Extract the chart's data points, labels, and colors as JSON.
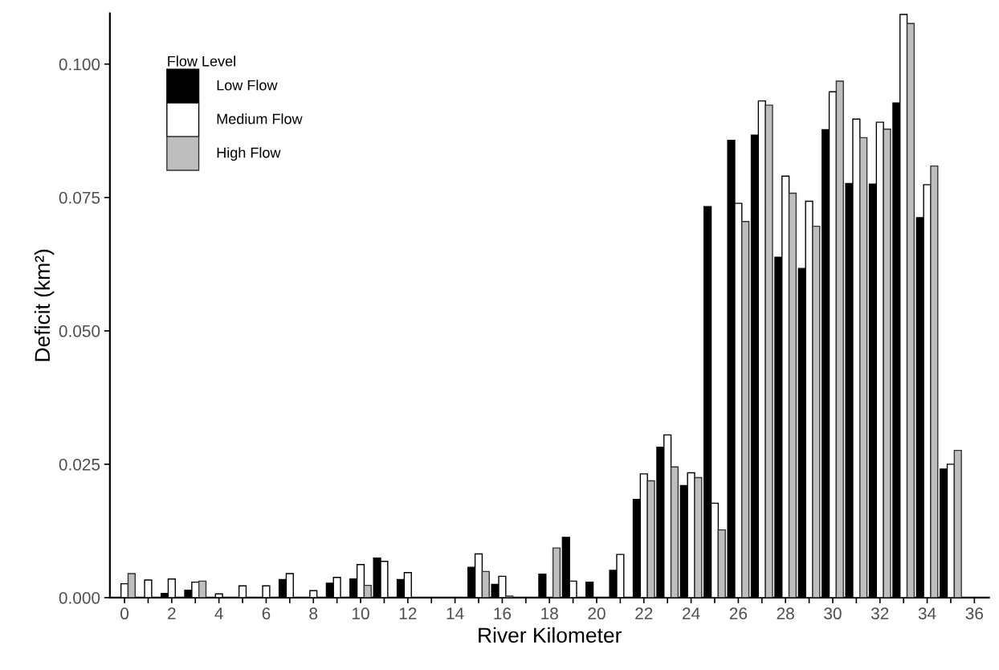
{
  "chart_data": {
    "type": "bar",
    "xlabel": "River Kilometer",
    "ylabel": "Deficit (km²)",
    "legend_title": "Flow Level",
    "legend": "top left",
    "grid": false,
    "x": [
      0,
      1,
      2,
      3,
      4,
      5,
      6,
      7,
      8,
      9,
      10,
      11,
      12,
      13,
      14,
      15,
      16,
      17,
      18,
      19,
      20,
      21,
      22,
      23,
      24,
      25,
      26,
      27,
      28,
      29,
      30,
      31,
      32,
      33,
      34,
      35
    ],
    "xlim": [
      -0.62,
      36.62
    ],
    "xticks": [
      0,
      {
        "value": 1,
        "label": null
      },
      2,
      {
        "value": 3,
        "label": null
      },
      4,
      {
        "value": 5,
        "label": null
      },
      6,
      {
        "value": 7,
        "label": null
      },
      8,
      {
        "value": 9,
        "label": null
      },
      10,
      {
        "value": 11,
        "label": null
      },
      12,
      {
        "value": 13,
        "label": null
      },
      14,
      {
        "value": 15,
        "label": null
      },
      16,
      {
        "value": 17,
        "label": null
      },
      18,
      {
        "value": 19,
        "label": null
      },
      20,
      {
        "value": 21,
        "label": null
      },
      22,
      {
        "value": 23,
        "label": null
      },
      24,
      {
        "value": 25,
        "label": null
      },
      26,
      {
        "value": 27,
        "label": null
      },
      28,
      {
        "value": 29,
        "label": null
      },
      30,
      {
        "value": 31,
        "label": null
      },
      32,
      {
        "value": 33,
        "label": null
      },
      34,
      {
        "value": 35,
        "label": null
      },
      36
    ],
    "ylim": [
      0,
      0.1095
    ],
    "yticks": [
      {
        "value": 0,
        "label": "0.000"
      },
      {
        "value": 0.025,
        "label": "0.025"
      },
      {
        "value": 0.05,
        "label": "0.050"
      },
      {
        "value": 0.075,
        "label": "0.075"
      },
      {
        "value": 0.1,
        "label": "0.100"
      }
    ],
    "series": [
      {
        "name": "Low Flow",
        "color": "#000000",
        "values": [
          null,
          null,
          0.0008,
          0.0014,
          null,
          null,
          null,
          0.0034,
          null,
          0.0027,
          0.0035,
          0.0074,
          0.0034,
          null,
          null,
          0.0057,
          0.0025,
          null,
          0.0044,
          0.0113,
          0.0029,
          0.0051,
          0.0184,
          0.0282,
          0.021,
          0.0733,
          0.0857,
          0.0867,
          0.0638,
          0.0617,
          0.0877,
          0.0776,
          0.0775,
          0.0927,
          0.0712,
          0.0241
        ]
      },
      {
        "name": "Medium Flow",
        "color": "#ffffff",
        "values": [
          0.0026,
          0.0033,
          0.0035,
          0.0029,
          0.0007,
          0.0022,
          0.0022,
          0.0045,
          0.0013,
          0.0038,
          0.0062,
          0.0068,
          0.0047,
          null,
          null,
          0.0082,
          0.004,
          null,
          null,
          0.0031,
          null,
          0.0081,
          0.0232,
          0.0305,
          0.0234,
          0.0177,
          0.0739,
          0.0931,
          0.079,
          0.0743,
          0.0948,
          0.0897,
          0.0891,
          0.1093,
          0.0774,
          0.025
        ]
      },
      {
        "name": "High Flow",
        "color": "#bebebe",
        "values": [
          0.0045,
          null,
          null,
          0.0031,
          null,
          null,
          null,
          null,
          null,
          null,
          0.0023,
          null,
          null,
          null,
          null,
          0.0049,
          0.0003,
          null,
          0.0093,
          null,
          null,
          null,
          0.0219,
          0.0245,
          0.0225,
          0.0127,
          0.0705,
          0.0923,
          0.0758,
          0.0696,
          0.0968,
          0.0862,
          0.0878,
          0.1076,
          0.0809,
          0.0276
        ]
      }
    ]
  }
}
